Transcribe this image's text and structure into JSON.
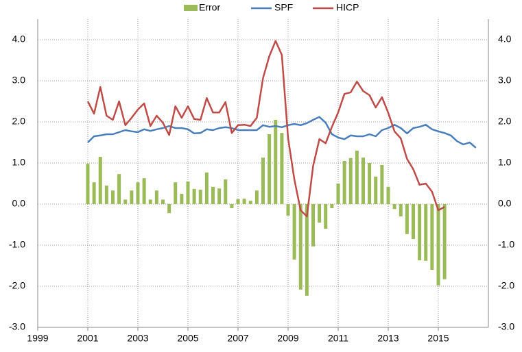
{
  "chart_data": {
    "type": "combo",
    "x": [
      2001,
      2001.25,
      2001.5,
      2001.75,
      2002,
      2002.25,
      2002.5,
      2002.75,
      2003,
      2003.25,
      2003.5,
      2003.75,
      2004,
      2004.25,
      2004.5,
      2004.75,
      2005,
      2005.25,
      2005.5,
      2005.75,
      2006,
      2006.25,
      2006.5,
      2006.75,
      2007,
      2007.25,
      2007.5,
      2007.75,
      2008,
      2008.25,
      2008.5,
      2008.75,
      2009,
      2009.25,
      2009.5,
      2009.75,
      2010,
      2010.25,
      2010.5,
      2010.75,
      2011,
      2011.25,
      2011.5,
      2011.75,
      2012,
      2012.25,
      2012.5,
      2012.75,
      2013,
      2013.25,
      2013.5,
      2013.75,
      2014,
      2014.25,
      2014.5,
      2014.75,
      2015,
      2015.25,
      2015.5,
      2015.75,
      2016,
      2016.25,
      2016.5
    ],
    "series": [
      {
        "name": "Error",
        "kind": "bar",
        "color": "#9bbb59",
        "values": [
          0.98,
          0.53,
          1.15,
          0.45,
          0.33,
          0.73,
          0.11,
          0.33,
          0.53,
          0.63,
          0.11,
          0.33,
          0.11,
          -0.22,
          0.53,
          0.25,
          0.55,
          0.37,
          0.35,
          0.77,
          0.42,
          0.38,
          0.6,
          -0.1,
          0.12,
          0.13,
          0.08,
          0.33,
          1.13,
          1.7,
          2.05,
          1.73,
          -0.28,
          -1.35,
          -2.08,
          -2.23,
          -1.03,
          -0.45,
          -0.6,
          -0.1,
          0.5,
          1.05,
          1.12,
          1.3,
          1.13,
          1.0,
          0.67,
          0.95,
          0.42,
          -0.12,
          -0.3,
          -0.73,
          -0.85,
          -1.37,
          -1.38,
          -1.6,
          -1.98,
          -1.83,
          null,
          null,
          null,
          null,
          null
        ]
      },
      {
        "name": "SPF",
        "kind": "line",
        "color": "#4a7ebb",
        "values": [
          1.5,
          1.65,
          1.67,
          1.7,
          1.7,
          1.75,
          1.8,
          1.77,
          1.75,
          1.82,
          1.78,
          1.82,
          1.85,
          1.9,
          1.85,
          1.85,
          1.82,
          1.72,
          1.73,
          1.82,
          1.8,
          1.85,
          1.87,
          1.85,
          1.8,
          1.8,
          1.8,
          1.8,
          1.92,
          1.88,
          1.9,
          1.87,
          1.92,
          1.95,
          1.92,
          1.97,
          2.05,
          2.12,
          1.98,
          1.7,
          1.62,
          1.58,
          1.67,
          1.65,
          1.65,
          1.7,
          1.65,
          1.8,
          1.85,
          1.93,
          1.85,
          1.72,
          1.85,
          1.88,
          1.93,
          1.82,
          1.77,
          1.73,
          1.67,
          1.53,
          1.45,
          1.5,
          1.37
        ]
      },
      {
        "name": "HICP",
        "kind": "line",
        "color": "#be4b48",
        "values": [
          2.5,
          2.2,
          2.85,
          2.15,
          2.05,
          2.5,
          1.92,
          2.1,
          2.3,
          2.45,
          1.9,
          2.15,
          1.98,
          1.68,
          2.38,
          2.1,
          2.38,
          2.07,
          2.05,
          2.58,
          2.23,
          2.23,
          2.48,
          1.73,
          1.92,
          1.93,
          1.9,
          2.1,
          3.07,
          3.6,
          3.97,
          3.63,
          1.6,
          0.6,
          -0.15,
          -0.3,
          0.93,
          1.58,
          1.48,
          1.88,
          2.23,
          2.68,
          2.72,
          2.98,
          2.75,
          2.65,
          2.35,
          2.6,
          2.22,
          1.77,
          1.6,
          1.1,
          0.85,
          0.47,
          0.5,
          0.3,
          -0.15,
          -0.07,
          null,
          null,
          null,
          null,
          null
        ]
      }
    ],
    "xlim": [
      1999,
      2017
    ],
    "xticks": [
      1999,
      2001,
      2003,
      2005,
      2007,
      2009,
      2011,
      2013,
      2015
    ],
    "ylim": [
      -3,
      4.5
    ],
    "yticks": [
      {
        "value": -3,
        "label": "-3.0"
      },
      {
        "value": -2,
        "label": "-2.0"
      },
      {
        "value": -1,
        "label": "-1.0"
      },
      {
        "value": 0,
        "label": "0.0"
      },
      {
        "value": 1,
        "label": "1.0"
      },
      {
        "value": 2,
        "label": "2.0"
      },
      {
        "value": 3,
        "label": "3.0"
      },
      {
        "value": 4,
        "label": "4.0"
      }
    ],
    "grid": true,
    "legend": "top"
  }
}
